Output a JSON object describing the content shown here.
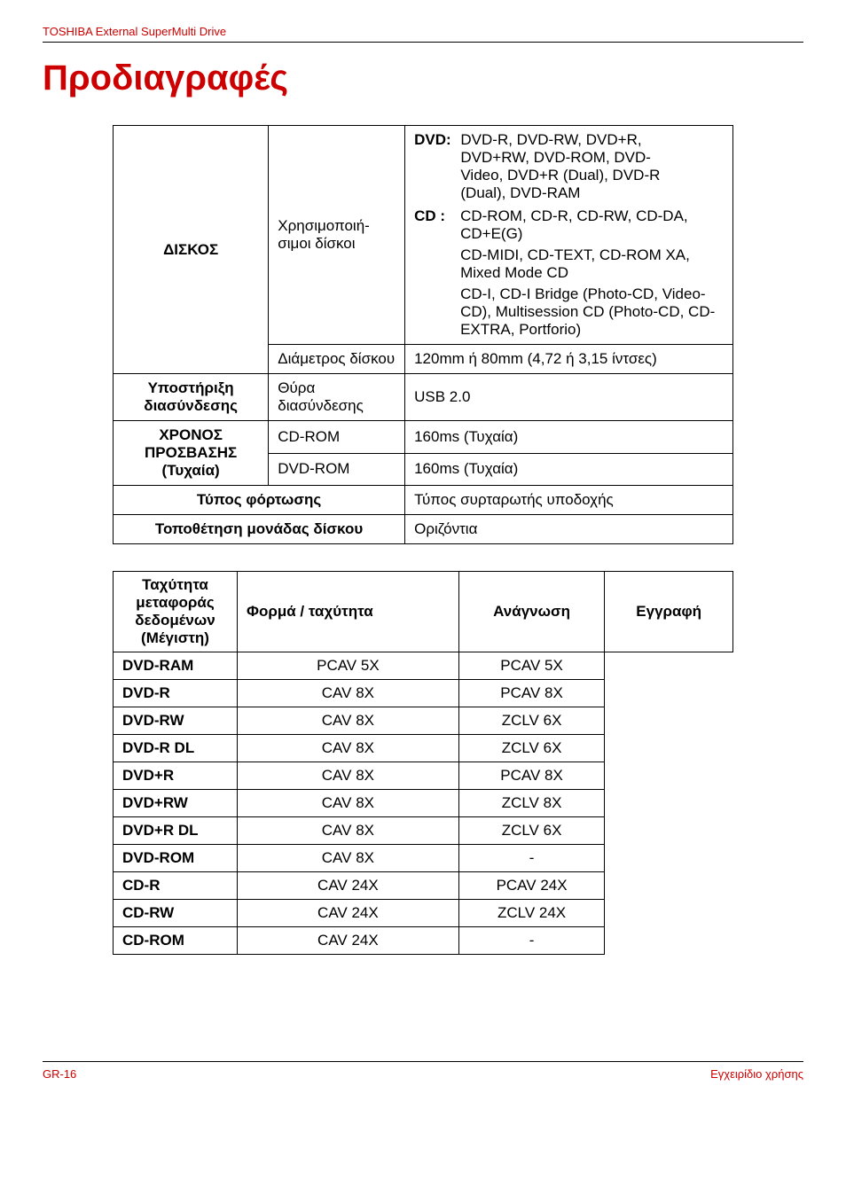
{
  "header": {
    "product": "TOSHIBA External SuperMulti Drive"
  },
  "title": "Προδιαγραφές",
  "colors": {
    "accent": "#cc0000",
    "text": "#000000",
    "border": "#000000",
    "bg": "#ffffff"
  },
  "spec_table": {
    "disc": {
      "label": "ΔΙΣΚΟΣ",
      "usable": {
        "label": "Χρησιμοποιή-σιμοι δίσκοι",
        "dvd_tag": "DVD:",
        "dvd": "DVD-R, DVD-RW, DVD+R, DVD+RW, DVD-ROM, DVD-Video, DVD+R (Dual), DVD-R (Dual), DVD-RAM",
        "cd_tag": "CD :",
        "cd1": "CD-ROM, CD-R, CD-RW, CD-DA, CD+E(G)",
        "cd2": "CD-MIDI, CD-TEXT, CD-ROM XA, Mixed Mode CD",
        "cd3": "CD-I, CD-I Bridge (Photo-CD, Video-CD), Multisession CD (Photo-CD, CD-EXTRA, Portforio)"
      },
      "diameter": {
        "label": "Διάμετρος δίσκου",
        "value": "120mm ή 80mm (4,72 ή 3,15 ίντσες)"
      }
    },
    "interface": {
      "label": "Υποστήριξη διασύνδεσης",
      "port_label": "Θύρα διασύνδεσης",
      "value": "USB 2.0"
    },
    "access": {
      "label": "ΧΡΟΝΟΣ ΠΡΟΣΒΑΣΗΣ (Τυχαία)",
      "cdrom": {
        "label": "CD-ROM",
        "value": "160ms (Τυχαία)"
      },
      "dvdrom": {
        "label": "DVD-ROM",
        "value": "160ms (Τυχαία)"
      }
    },
    "loading": {
      "label": "Τύπος φόρτωσης",
      "value": "Τύπος συρταρωτής υποδοχής"
    },
    "placement": {
      "label": "Τοποθέτηση μονάδας δίσκου",
      "value": "Οριζόντια"
    }
  },
  "speed_table": {
    "rowhead": "Ταχύτητα μεταφοράς δεδομένων (Μέγιστη)",
    "headers": {
      "format": "Φορμά / ταχύτητα",
      "read": "Ανάγνωση",
      "write": "Εγγραφή"
    },
    "rows": [
      {
        "format": "DVD-RAM",
        "read": "PCAV 5X",
        "write": "PCAV 5X"
      },
      {
        "format": "DVD-R",
        "read": "CAV 8X",
        "write": "PCAV 8X"
      },
      {
        "format": "DVD-RW",
        "read": "CAV 8X",
        "write": "ZCLV 6X"
      },
      {
        "format": "DVD-R DL",
        "read": "CAV 8X",
        "write": "ZCLV 6X"
      },
      {
        "format": "DVD+R",
        "read": "CAV 8X",
        "write": "PCAV 8X"
      },
      {
        "format": "DVD+RW",
        "read": "CAV 8X",
        "write": "ZCLV 8X"
      },
      {
        "format": "DVD+R DL",
        "read": "CAV 8X",
        "write": "ZCLV 6X"
      },
      {
        "format": "DVD-ROM",
        "read": "CAV 8X",
        "write": "-"
      },
      {
        "format": "CD-R",
        "read": "CAV 24X",
        "write": "PCAV 24X"
      },
      {
        "format": "CD-RW",
        "read": "CAV 24X",
        "write": "ZCLV 24X"
      },
      {
        "format": "CD-ROM",
        "read": "CAV 24X",
        "write": "-"
      }
    ]
  },
  "footer": {
    "page": "GR-16",
    "doc": "Εγχειρίδιο χρήσης"
  }
}
